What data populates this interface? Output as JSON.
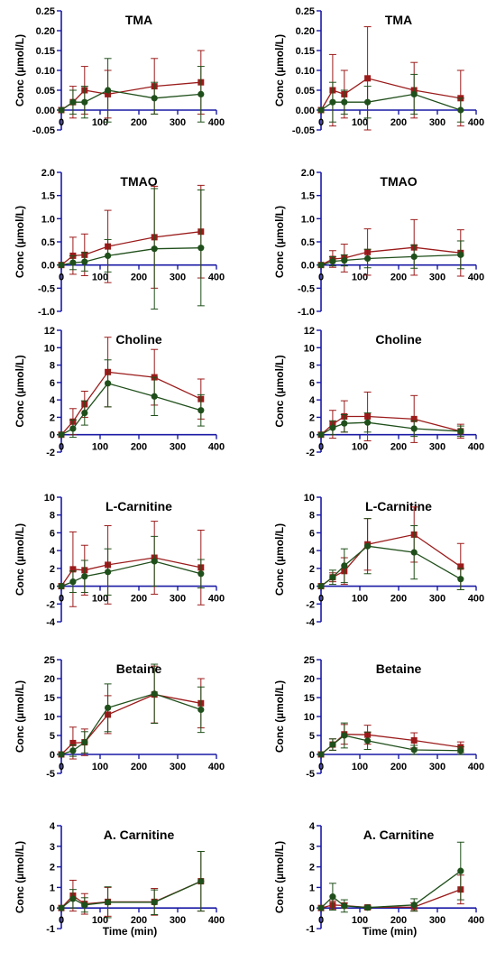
{
  "colors": {
    "axis": "#1a1aa6",
    "series_red": "#9b1b1b",
    "series_green": "#1f4f1a"
  },
  "chart_data": [
    {
      "panel": "r0c0",
      "type": "line",
      "title": "TMA",
      "ylabel": "Conc (µmol/L)",
      "xlabel": "",
      "xlim": [
        0,
        400
      ],
      "ylim": [
        -0.05,
        0.25
      ],
      "xticks": [
        "0",
        "100",
        "200",
        "300",
        "400"
      ],
      "yticks": [
        "-0.05",
        "0.00",
        "0.05",
        "0.10",
        "0.15",
        "0.20",
        "0.25"
      ],
      "series": [
        {
          "color": "red",
          "x": [
            0,
            30,
            60,
            120,
            240,
            360
          ],
          "y": [
            0,
            0.02,
            0.05,
            0.04,
            0.06,
            0.07
          ],
          "err": [
            0,
            0.04,
            0.06,
            0.06,
            0.07,
            0.08
          ]
        },
        {
          "color": "green",
          "x": [
            0,
            30,
            60,
            120,
            240,
            360
          ],
          "y": [
            0,
            0.02,
            0.02,
            0.05,
            0.03,
            0.04
          ],
          "err": [
            0,
            0.03,
            0.04,
            0.08,
            0.04,
            0.07
          ]
        }
      ]
    },
    {
      "panel": "r0c1",
      "type": "line",
      "title": "TMA",
      "ylabel": "Conc (µmol/L)",
      "xlabel": "",
      "xlim": [
        0,
        400
      ],
      "ylim": [
        -0.05,
        0.25
      ],
      "xticks": [
        "0",
        "100",
        "200",
        "300",
        "400"
      ],
      "yticks": [
        "-0.05",
        "0.00",
        "0.05",
        "0.10",
        "0.15",
        "0.20",
        "0.25"
      ],
      "series": [
        {
          "color": "red",
          "x": [
            0,
            30,
            60,
            120,
            240,
            360
          ],
          "y": [
            0,
            0.05,
            0.04,
            0.08,
            0.05,
            0.03
          ],
          "err": [
            0,
            0.09,
            0.06,
            0.13,
            0.07,
            0.07
          ]
        },
        {
          "color": "green",
          "x": [
            0,
            30,
            60,
            120,
            240,
            360
          ],
          "y": [
            0,
            0.02,
            0.02,
            0.02,
            0.04,
            0.0
          ],
          "err": [
            0,
            0.05,
            0.03,
            0.04,
            0.05,
            0.03
          ]
        }
      ]
    },
    {
      "panel": "r1c0",
      "type": "line",
      "title": "TMAO",
      "ylabel": "Conc (µmol/L)",
      "xlabel": "",
      "xlim": [
        0,
        400
      ],
      "ylim": [
        -1.0,
        2.0
      ],
      "xticks": [
        "0",
        "100",
        "200",
        "300",
        "400"
      ],
      "yticks": [
        "-1.0",
        "-0.5",
        "0.0",
        "0.5",
        "1.0",
        "1.5",
        "2.0"
      ],
      "series": [
        {
          "color": "red",
          "x": [
            0,
            30,
            60,
            120,
            240,
            360
          ],
          "y": [
            0,
            0.2,
            0.22,
            0.4,
            0.6,
            0.72
          ],
          "err": [
            0,
            0.4,
            0.45,
            0.78,
            1.1,
            1.0
          ]
        },
        {
          "color": "green",
          "x": [
            0,
            30,
            60,
            120,
            240,
            360
          ],
          "y": [
            0,
            0.05,
            0.07,
            0.2,
            0.35,
            0.37
          ],
          "err": [
            0,
            0.15,
            0.2,
            0.35,
            1.3,
            1.25
          ]
        }
      ]
    },
    {
      "panel": "r1c1",
      "type": "line",
      "title": "TMAO",
      "ylabel": "Conc (µmol/L)",
      "xlabel": "",
      "xlim": [
        0,
        400
      ],
      "ylim": [
        -1.0,
        2.0
      ],
      "xticks": [
        "0",
        "100",
        "200",
        "300",
        "400"
      ],
      "yticks": [
        "-1.0",
        "-0.5",
        "0.0",
        "0.5",
        "1.0",
        "1.5",
        "2.0"
      ],
      "series": [
        {
          "color": "red",
          "x": [
            0,
            30,
            60,
            120,
            240,
            360
          ],
          "y": [
            0,
            0.13,
            0.15,
            0.28,
            0.38,
            0.26
          ],
          "err": [
            0,
            0.18,
            0.3,
            0.5,
            0.6,
            0.5
          ]
        },
        {
          "color": "green",
          "x": [
            0,
            30,
            60,
            120,
            240,
            360
          ],
          "y": [
            0,
            0.08,
            0.1,
            0.14,
            0.18,
            0.22
          ],
          "err": [
            0,
            0.1,
            0.12,
            0.2,
            0.25,
            0.3
          ]
        }
      ]
    },
    {
      "panel": "r2c0",
      "type": "line",
      "title": "Choline",
      "ylabel": "Conc (µmol/L)",
      "xlabel": "",
      "xlim": [
        0,
        400
      ],
      "ylim": [
        -2,
        12
      ],
      "xticks": [
        "0",
        "100",
        "200",
        "300",
        "400"
      ],
      "yticks": [
        "-2",
        "0",
        "2",
        "4",
        "6",
        "8",
        "10",
        "12"
      ],
      "series": [
        {
          "color": "red",
          "x": [
            0,
            30,
            60,
            120,
            240,
            360
          ],
          "y": [
            0,
            1.5,
            3.5,
            7.2,
            6.6,
            4.1
          ],
          "err": [
            0,
            1.5,
            1.5,
            4.0,
            3.2,
            2.3
          ]
        },
        {
          "color": "green",
          "x": [
            0,
            30,
            60,
            120,
            240,
            360
          ],
          "y": [
            0,
            0.7,
            2.5,
            5.9,
            4.4,
            2.8
          ],
          "err": [
            0,
            1.0,
            1.4,
            2.7,
            2.2,
            1.8
          ]
        }
      ]
    },
    {
      "panel": "r2c1",
      "type": "line",
      "title": "Choline",
      "ylabel": "Conc (µmol/L)",
      "xlabel": "",
      "xlim": [
        0,
        400
      ],
      "ylim": [
        -2,
        12
      ],
      "xticks": [
        "0",
        "100",
        "200",
        "300",
        "400"
      ],
      "yticks": [
        "-2",
        "0",
        "2",
        "4",
        "6",
        "8",
        "10",
        "12"
      ],
      "series": [
        {
          "color": "red",
          "x": [
            0,
            30,
            60,
            120,
            240,
            360
          ],
          "y": [
            0,
            1.2,
            2.1,
            2.1,
            1.8,
            0.4
          ],
          "err": [
            0,
            1.6,
            1.8,
            2.8,
            2.7,
            0.8
          ]
        },
        {
          "color": "green",
          "x": [
            0,
            30,
            60,
            120,
            240,
            360
          ],
          "y": [
            0,
            0.8,
            1.3,
            1.4,
            0.7,
            0.4
          ],
          "err": [
            0,
            0.8,
            1.0,
            1.1,
            0.9,
            0.6
          ]
        }
      ]
    },
    {
      "panel": "r3c0",
      "type": "line",
      "title": "L-Carnitine",
      "ylabel": "Conc (µmol/L)",
      "xlabel": "",
      "xlim": [
        0,
        400
      ],
      "ylim": [
        -4,
        10
      ],
      "xticks": [
        "0",
        "100",
        "200",
        "300",
        "400"
      ],
      "yticks": [
        "-4",
        "-2",
        "0",
        "2",
        "4",
        "6",
        "8",
        "10"
      ],
      "series": [
        {
          "color": "red",
          "x": [
            0,
            30,
            60,
            120,
            240,
            360
          ],
          "y": [
            0,
            1.9,
            1.8,
            2.4,
            3.2,
            2.1
          ],
          "err": [
            0,
            4.2,
            2.8,
            4.4,
            4.1,
            4.2
          ]
        },
        {
          "color": "green",
          "x": [
            0,
            30,
            60,
            120,
            240,
            360
          ],
          "y": [
            0,
            0.5,
            1.1,
            1.6,
            2.8,
            1.4
          ],
          "err": [
            0,
            1.2,
            1.8,
            2.6,
            2.8,
            1.6
          ]
        }
      ]
    },
    {
      "panel": "r3c1",
      "type": "line",
      "title": "L-Carnitine",
      "ylabel": "Conc (µmol/L)",
      "xlabel": "",
      "xlim": [
        0,
        400
      ],
      "ylim": [
        -4,
        10
      ],
      "xticks": [
        "0",
        "100",
        "200",
        "300",
        "400"
      ],
      "yticks": [
        "-4",
        "-2",
        "0",
        "2",
        "4",
        "6",
        "8",
        "10"
      ],
      "series": [
        {
          "color": "red",
          "x": [
            0,
            30,
            60,
            120,
            240,
            360
          ],
          "y": [
            0,
            1.0,
            1.7,
            4.7,
            5.8,
            2.2
          ],
          "err": [
            0,
            0.5,
            1.5,
            2.9,
            3.1,
            2.6
          ]
        },
        {
          "color": "green",
          "x": [
            0,
            30,
            60,
            120,
            240,
            360
          ],
          "y": [
            0,
            1.0,
            2.3,
            4.5,
            3.8,
            0.8
          ],
          "err": [
            0,
            0.8,
            1.9,
            3.1,
            3.0,
            1.2
          ]
        }
      ]
    },
    {
      "panel": "r4c0",
      "type": "line",
      "title": "Betaine",
      "ylabel": "Conc (µmol/L)",
      "xlabel": "",
      "xlim": [
        0,
        400
      ],
      "ylim": [
        -5,
        25
      ],
      "xticks": [
        "0",
        "100",
        "200",
        "300",
        "400"
      ],
      "yticks": [
        "-5",
        "0",
        "5",
        "10",
        "15",
        "20",
        "25"
      ],
      "series": [
        {
          "color": "red",
          "x": [
            0,
            30,
            60,
            120,
            240,
            360
          ],
          "y": [
            0,
            3.0,
            3.2,
            10.5,
            15.8,
            13.5
          ],
          "err": [
            0,
            4.2,
            3.5,
            5.0,
            7.5,
            6.5
          ]
        },
        {
          "color": "green",
          "x": [
            0,
            30,
            60,
            120,
            240,
            360
          ],
          "y": [
            0,
            1.0,
            3.2,
            12.3,
            16.0,
            11.8
          ],
          "err": [
            0,
            1.5,
            2.8,
            6.3,
            7.8,
            6.0
          ]
        }
      ]
    },
    {
      "panel": "r4c1",
      "type": "line",
      "title": "Betaine",
      "ylabel": "Conc (µmol/L)",
      "xlabel": "",
      "xlim": [
        0,
        400
      ],
      "ylim": [
        -5,
        25
      ],
      "xticks": [
        "0",
        "100",
        "200",
        "300",
        "400"
      ],
      "yticks": [
        "-5",
        "0",
        "5",
        "10",
        "15",
        "20",
        "25"
      ],
      "series": [
        {
          "color": "red",
          "x": [
            0,
            30,
            60,
            120,
            240,
            360
          ],
          "y": [
            0,
            2.6,
            5.3,
            5.2,
            3.7,
            1.9
          ],
          "err": [
            0,
            1.5,
            2.6,
            2.5,
            2.0,
            1.4
          ]
        },
        {
          "color": "green",
          "x": [
            0,
            30,
            60,
            120,
            240,
            360
          ],
          "y": [
            0,
            2.6,
            5.0,
            3.6,
            1.2,
            1.0
          ],
          "err": [
            0,
            1.5,
            3.3,
            2.3,
            1.2,
            1.0
          ]
        }
      ]
    },
    {
      "panel": "r5c0",
      "type": "line",
      "title": "A. Carnitine",
      "ylabel": "Conc (µmol/L)",
      "xlabel": "Time (min)",
      "xlim": [
        0,
        400
      ],
      "ylim": [
        -1,
        4
      ],
      "xticks": [
        "0",
        "100",
        "200",
        "300",
        "400"
      ],
      "yticks": [
        "-1",
        "0",
        "1",
        "2",
        "3",
        "4"
      ],
      "series": [
        {
          "color": "red",
          "x": [
            0,
            30,
            60,
            120,
            240,
            360
          ],
          "y": [
            0,
            0.6,
            0.2,
            0.3,
            0.3,
            1.3
          ],
          "err": [
            0,
            0.75,
            0.5,
            0.7,
            0.65,
            1.45
          ]
        },
        {
          "color": "green",
          "x": [
            0,
            30,
            60,
            120,
            240,
            360
          ],
          "y": [
            0,
            0.45,
            0.15,
            0.28,
            0.28,
            1.3
          ],
          "err": [
            0,
            0.45,
            0.35,
            0.75,
            0.6,
            1.45
          ]
        }
      ]
    },
    {
      "panel": "r5c1",
      "type": "line",
      "title": "A. Carnitine",
      "ylabel": "Conc (µmol/L)",
      "xlabel": "Time (min)",
      "xlim": [
        0,
        400
      ],
      "ylim": [
        -1,
        4
      ],
      "xticks": [
        "0",
        "100",
        "200",
        "300",
        "400"
      ],
      "yticks": [
        "-1",
        "0",
        "1",
        "2",
        "3",
        "4"
      ],
      "series": [
        {
          "color": "red",
          "x": [
            0,
            30,
            60,
            120,
            240,
            360
          ],
          "y": [
            0,
            0.15,
            0.12,
            0.03,
            0.05,
            0.9
          ],
          "err": [
            0,
            0.2,
            0.12,
            0.06,
            0.2,
            0.7
          ]
        },
        {
          "color": "green",
          "x": [
            0,
            30,
            60,
            120,
            240,
            360
          ],
          "y": [
            0,
            0.55,
            0.1,
            0.02,
            0.15,
            1.8
          ],
          "err": [
            0,
            0.65,
            0.3,
            0.08,
            0.3,
            1.4
          ]
        }
      ]
    }
  ]
}
